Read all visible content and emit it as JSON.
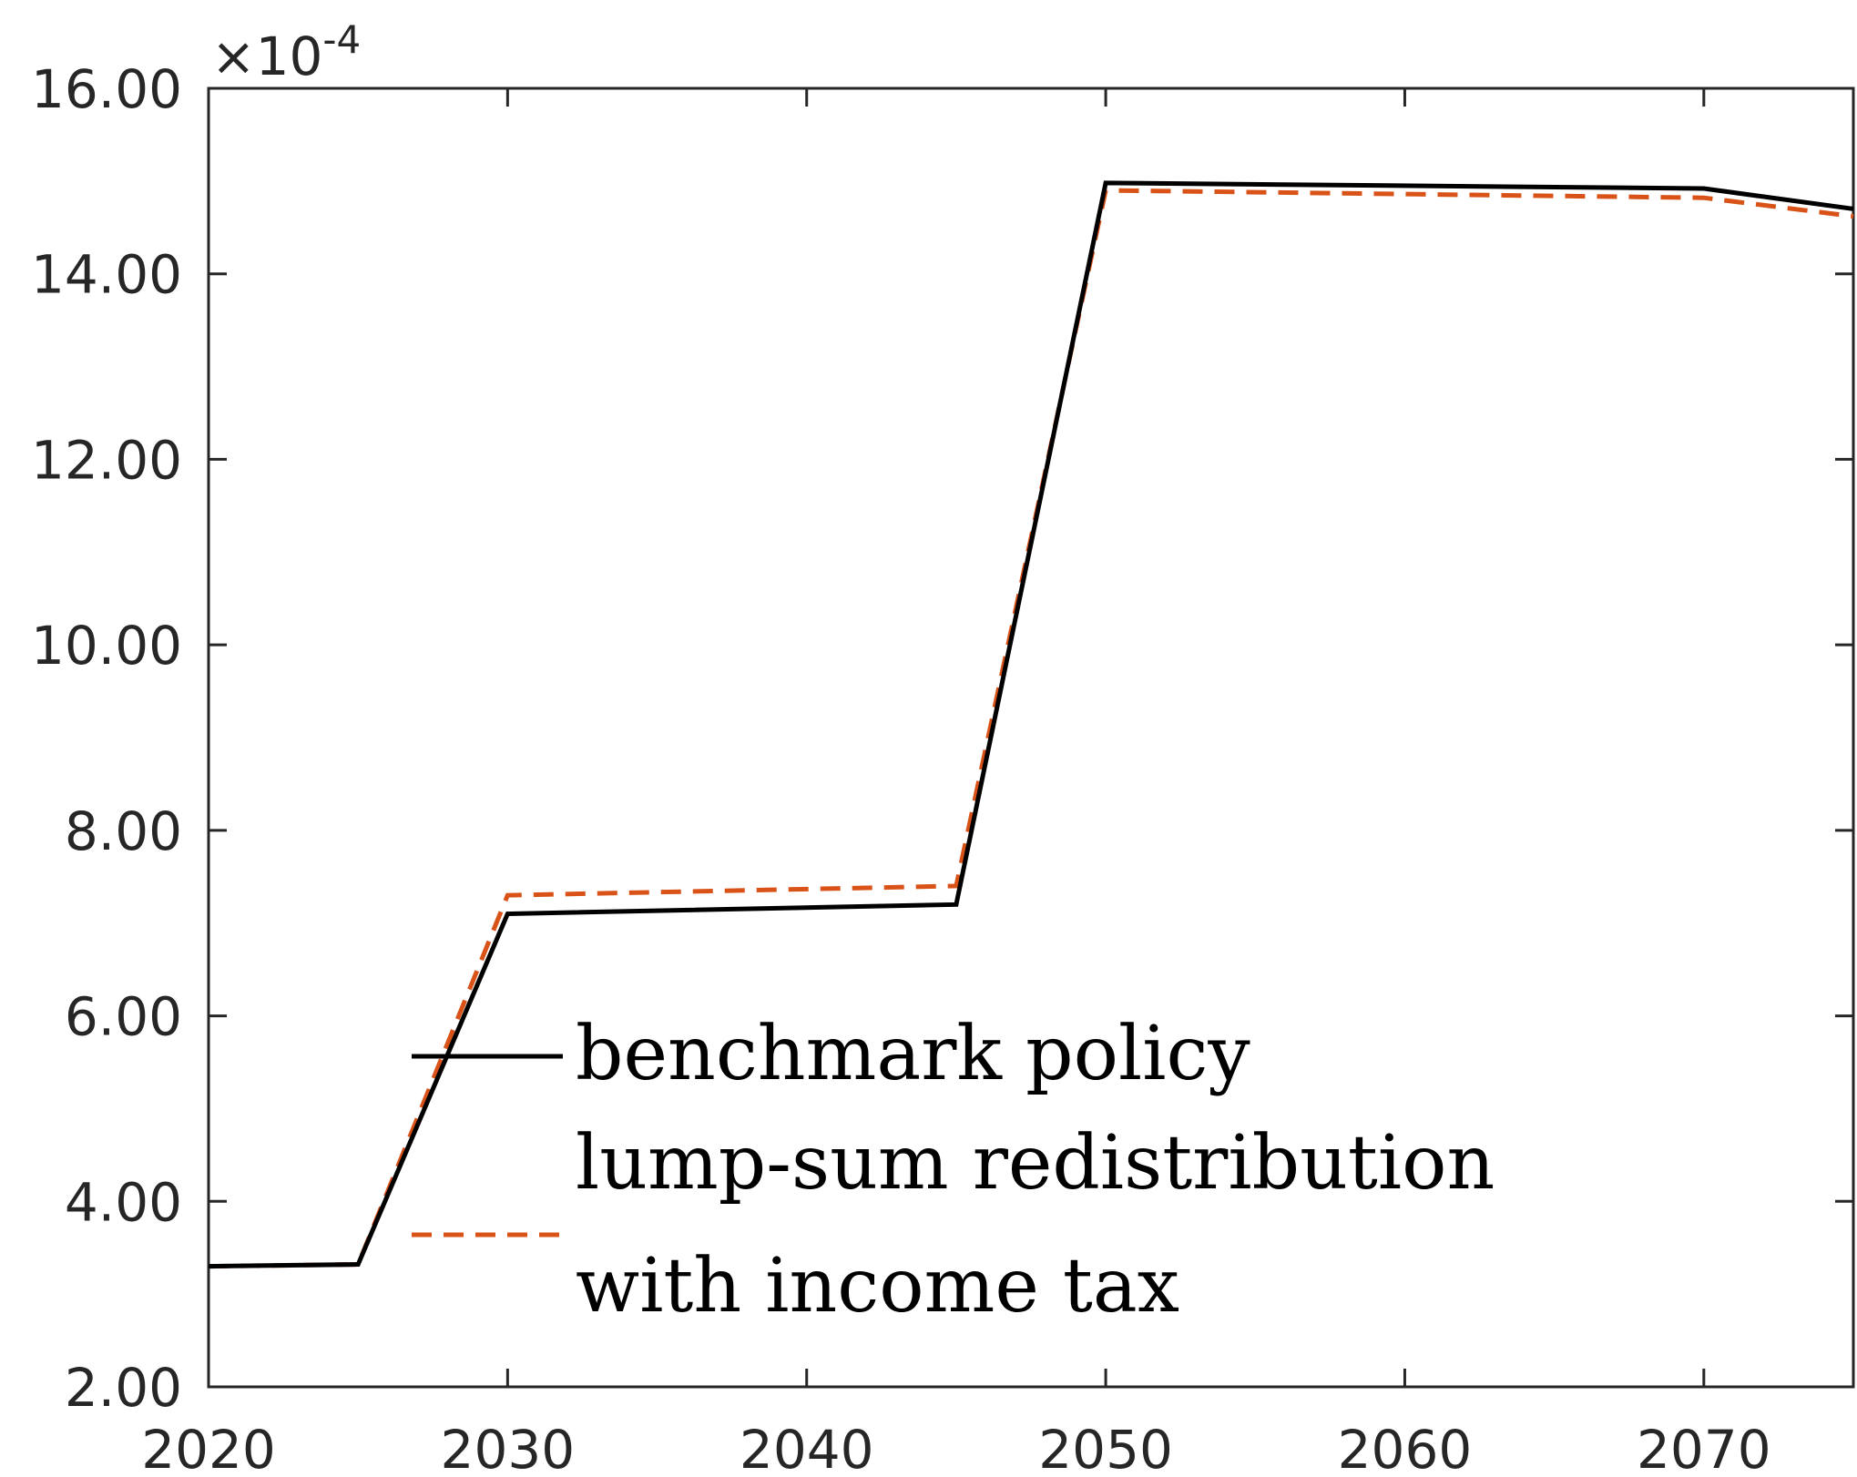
{
  "chart_data": {
    "type": "line",
    "title": "",
    "xlabel": "",
    "ylabel": "",
    "xlim": [
      2020,
      2075
    ],
    "ylim": [
      2,
      16
    ],
    "y_multiplier": "×10",
    "y_exponent": "-4",
    "x_ticks": [
      2020,
      2030,
      2040,
      2050,
      2060,
      2070
    ],
    "x_tick_labels": [
      "2020",
      "2030",
      "2040",
      "2050",
      "2060",
      "2070"
    ],
    "y_ticks": [
      2,
      4,
      6,
      8,
      10,
      12,
      14,
      16
    ],
    "y_tick_labels": [
      "2.00",
      "4.00",
      "6.00",
      "8.00",
      "10.00",
      "12.00",
      "14.00",
      "16.00"
    ],
    "grid": false,
    "legend_position": "lower-center",
    "series": [
      {
        "name": "benchmark policy",
        "color": "#000000",
        "style": "solid",
        "x": [
          2020,
          2025,
          2030,
          2045,
          2050,
          2070,
          2075
        ],
        "y": [
          3.3,
          3.32,
          7.1,
          7.2,
          14.98,
          14.92,
          14.7
        ]
      },
      {
        "name": "lump-sum redistribution with income tax",
        "legend_lines": [
          "lump-sum redistribution",
          "with income tax"
        ],
        "color": "#D95319",
        "style": "dashed",
        "x": [
          2020,
          2025,
          2030,
          2045,
          2050,
          2070,
          2075
        ],
        "y": [
          3.3,
          3.32,
          7.3,
          7.4,
          14.9,
          14.82,
          14.62
        ]
      }
    ]
  }
}
